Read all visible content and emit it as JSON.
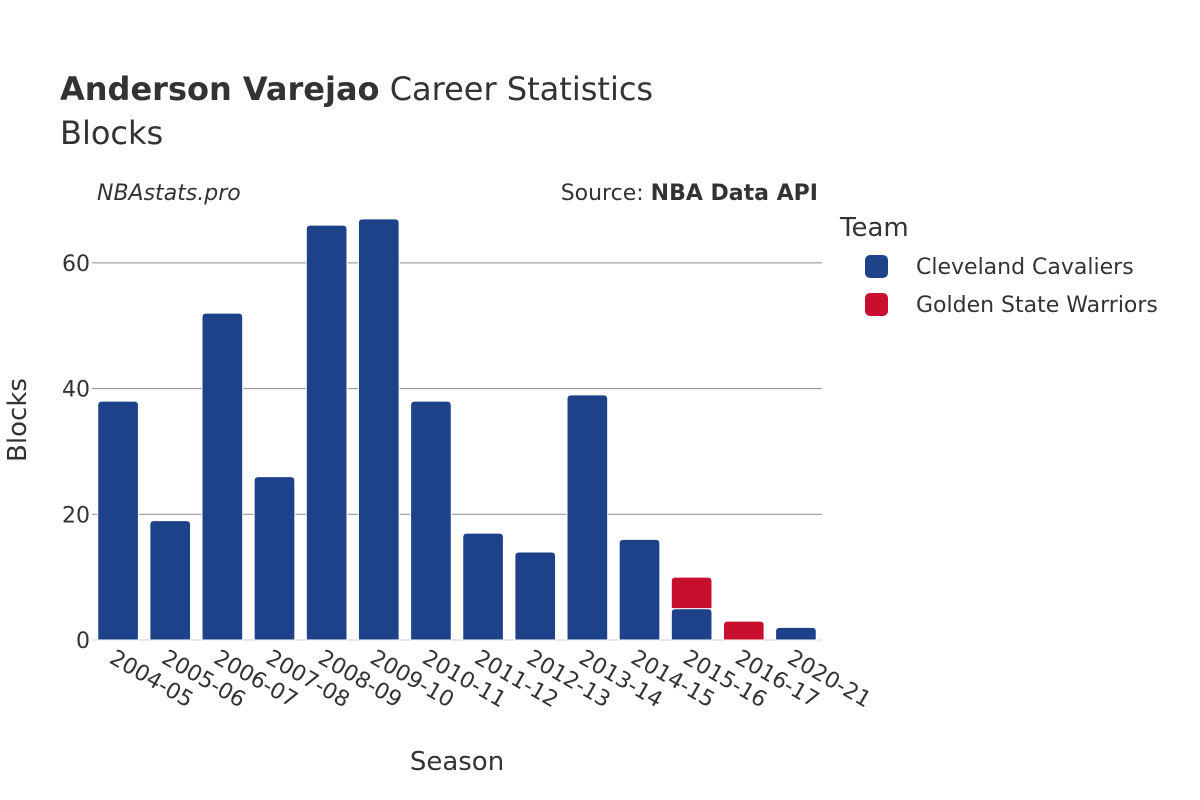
{
  "chart_data": {
    "type": "bar",
    "stacked": true,
    "title_bold": "Anderson Varejao",
    "title_rest": " Career Statistics",
    "subtitle": "Blocks",
    "watermark": "NBAstats.pro",
    "source_prefix": "Source: ",
    "source_name": "NBA Data API",
    "xlabel": "Season",
    "ylabel": "Blocks",
    "ylim": [
      0,
      70
    ],
    "yticks": [
      0,
      20,
      40,
      60
    ],
    "grid": true,
    "legend_title": "Team",
    "legend_position": "right",
    "categories": [
      "2004-05",
      "2005-06",
      "2006-07",
      "2007-08",
      "2008-09",
      "2009-10",
      "2010-11",
      "2011-12",
      "2012-13",
      "2013-14",
      "2014-15",
      "2015-16",
      "2016-17",
      "2020-21"
    ],
    "series": [
      {
        "name": "Cleveland Cavaliers",
        "color": "#1d428a",
        "values": [
          38,
          19,
          52,
          26,
          66,
          67,
          38,
          17,
          14,
          39,
          16,
          5,
          0,
          2
        ]
      },
      {
        "name": "Golden State Warriors",
        "color": "#c8102e",
        "values": [
          0,
          0,
          0,
          0,
          0,
          0,
          0,
          0,
          0,
          0,
          0,
          5,
          3,
          0
        ]
      }
    ]
  }
}
